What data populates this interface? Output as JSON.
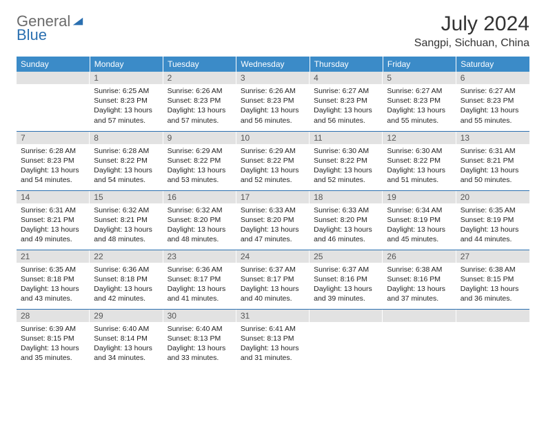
{
  "logo": {
    "general": "General",
    "blue": "Blue"
  },
  "title": "July 2024",
  "location": "Sangpi, Sichuan, China",
  "colors": {
    "header_bg": "#3b8bc8",
    "header_text": "#ffffff",
    "daynum_bg": "#e2e2e2",
    "border": "#2a6fb0",
    "logo_gray": "#6b6b6b",
    "logo_blue": "#2a6fb0"
  },
  "day_headers": [
    "Sunday",
    "Monday",
    "Tuesday",
    "Wednesday",
    "Thursday",
    "Friday",
    "Saturday"
  ],
  "weeks": [
    [
      {
        "n": "",
        "sr": "",
        "ss": "",
        "dl": ""
      },
      {
        "n": "1",
        "sr": "6:25 AM",
        "ss": "8:23 PM",
        "dl": "13 hours and 57 minutes."
      },
      {
        "n": "2",
        "sr": "6:26 AM",
        "ss": "8:23 PM",
        "dl": "13 hours and 57 minutes."
      },
      {
        "n": "3",
        "sr": "6:26 AM",
        "ss": "8:23 PM",
        "dl": "13 hours and 56 minutes."
      },
      {
        "n": "4",
        "sr": "6:27 AM",
        "ss": "8:23 PM",
        "dl": "13 hours and 56 minutes."
      },
      {
        "n": "5",
        "sr": "6:27 AM",
        "ss": "8:23 PM",
        "dl": "13 hours and 55 minutes."
      },
      {
        "n": "6",
        "sr": "6:27 AM",
        "ss": "8:23 PM",
        "dl": "13 hours and 55 minutes."
      }
    ],
    [
      {
        "n": "7",
        "sr": "6:28 AM",
        "ss": "8:23 PM",
        "dl": "13 hours and 54 minutes."
      },
      {
        "n": "8",
        "sr": "6:28 AM",
        "ss": "8:22 PM",
        "dl": "13 hours and 54 minutes."
      },
      {
        "n": "9",
        "sr": "6:29 AM",
        "ss": "8:22 PM",
        "dl": "13 hours and 53 minutes."
      },
      {
        "n": "10",
        "sr": "6:29 AM",
        "ss": "8:22 PM",
        "dl": "13 hours and 52 minutes."
      },
      {
        "n": "11",
        "sr": "6:30 AM",
        "ss": "8:22 PM",
        "dl": "13 hours and 52 minutes."
      },
      {
        "n": "12",
        "sr": "6:30 AM",
        "ss": "8:22 PM",
        "dl": "13 hours and 51 minutes."
      },
      {
        "n": "13",
        "sr": "6:31 AM",
        "ss": "8:21 PM",
        "dl": "13 hours and 50 minutes."
      }
    ],
    [
      {
        "n": "14",
        "sr": "6:31 AM",
        "ss": "8:21 PM",
        "dl": "13 hours and 49 minutes."
      },
      {
        "n": "15",
        "sr": "6:32 AM",
        "ss": "8:21 PM",
        "dl": "13 hours and 48 minutes."
      },
      {
        "n": "16",
        "sr": "6:32 AM",
        "ss": "8:20 PM",
        "dl": "13 hours and 48 minutes."
      },
      {
        "n": "17",
        "sr": "6:33 AM",
        "ss": "8:20 PM",
        "dl": "13 hours and 47 minutes."
      },
      {
        "n": "18",
        "sr": "6:33 AM",
        "ss": "8:20 PM",
        "dl": "13 hours and 46 minutes."
      },
      {
        "n": "19",
        "sr": "6:34 AM",
        "ss": "8:19 PM",
        "dl": "13 hours and 45 minutes."
      },
      {
        "n": "20",
        "sr": "6:35 AM",
        "ss": "8:19 PM",
        "dl": "13 hours and 44 minutes."
      }
    ],
    [
      {
        "n": "21",
        "sr": "6:35 AM",
        "ss": "8:18 PM",
        "dl": "13 hours and 43 minutes."
      },
      {
        "n": "22",
        "sr": "6:36 AM",
        "ss": "8:18 PM",
        "dl": "13 hours and 42 minutes."
      },
      {
        "n": "23",
        "sr": "6:36 AM",
        "ss": "8:17 PM",
        "dl": "13 hours and 41 minutes."
      },
      {
        "n": "24",
        "sr": "6:37 AM",
        "ss": "8:17 PM",
        "dl": "13 hours and 40 minutes."
      },
      {
        "n": "25",
        "sr": "6:37 AM",
        "ss": "8:16 PM",
        "dl": "13 hours and 39 minutes."
      },
      {
        "n": "26",
        "sr": "6:38 AM",
        "ss": "8:16 PM",
        "dl": "13 hours and 37 minutes."
      },
      {
        "n": "27",
        "sr": "6:38 AM",
        "ss": "8:15 PM",
        "dl": "13 hours and 36 minutes."
      }
    ],
    [
      {
        "n": "28",
        "sr": "6:39 AM",
        "ss": "8:15 PM",
        "dl": "13 hours and 35 minutes."
      },
      {
        "n": "29",
        "sr": "6:40 AM",
        "ss": "8:14 PM",
        "dl": "13 hours and 34 minutes."
      },
      {
        "n": "30",
        "sr": "6:40 AM",
        "ss": "8:13 PM",
        "dl": "13 hours and 33 minutes."
      },
      {
        "n": "31",
        "sr": "6:41 AM",
        "ss": "8:13 PM",
        "dl": "13 hours and 31 minutes."
      },
      {
        "n": "",
        "sr": "",
        "ss": "",
        "dl": ""
      },
      {
        "n": "",
        "sr": "",
        "ss": "",
        "dl": ""
      },
      {
        "n": "",
        "sr": "",
        "ss": "",
        "dl": ""
      }
    ]
  ],
  "labels": {
    "sunrise": "Sunrise:",
    "sunset": "Sunset:",
    "daylight": "Daylight:"
  }
}
